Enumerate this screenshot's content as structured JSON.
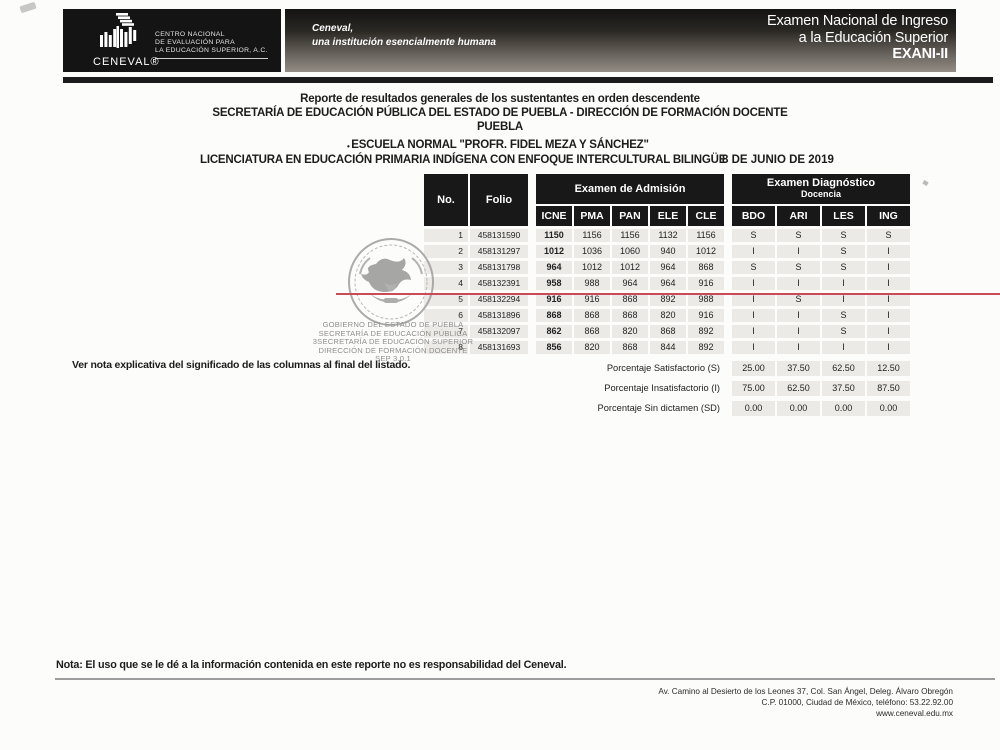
{
  "header": {
    "logo": {
      "brand": "CENEVAL®",
      "org_lines": [
        "CENTRO NACIONAL",
        "DE EVALUACIÓN PARA",
        "LA EDUCACIÓN SUPERIOR, A.C."
      ]
    },
    "slogan_line1": "Ceneval,",
    "slogan_line2": "una institución esencialmente humana",
    "exam_title_lines": [
      "Examen Nacional de Ingreso",
      "a la Educación Superior",
      "EXANI-II"
    ]
  },
  "titles": {
    "report": "Reporte de resultados generales de los sustentantes en orden descendente",
    "secretary": "SECRETARÍA DE EDUCACIÓN PÚBLICA DEL ESTADO DE PUEBLA - DIRECCIÓN DE FORMACIÓN DOCENTE",
    "state": "PUEBLA",
    "school_bullet": "•",
    "school": "ESCUELA NORMAL \"PROFR. FIDEL MEZA Y SÁNCHEZ\"",
    "program": "LICENCIATURA EN EDUCACIÓN PRIMARIA INDÍGENA CON ENFOQUE INTERCULTURAL BILINGÜE",
    "date": "8 DE JUNIO DE 2019"
  },
  "table": {
    "col_no": "No.",
    "col_folio": "Folio",
    "group_admission": "Examen de Admisión",
    "group_diagnostic_line1": "Examen Diagnóstico",
    "group_diagnostic_line2": "Docencia",
    "admission_cols": [
      "ICNE",
      "PMA",
      "PAN",
      "ELE",
      "CLE"
    ],
    "diagnostic_cols": [
      "BDO",
      "ARI",
      "LES",
      "ING"
    ],
    "rows": [
      {
        "no": "1",
        "folio": "458131590",
        "adm": [
          "1150",
          "1156",
          "1156",
          "1132",
          "1156"
        ],
        "diag": [
          "S",
          "S",
          "S",
          "S"
        ]
      },
      {
        "no": "2",
        "folio": "458131297",
        "adm": [
          "1012",
          "1036",
          "1060",
          "940",
          "1012"
        ],
        "diag": [
          "I",
          "I",
          "S",
          "I"
        ]
      },
      {
        "no": "3",
        "folio": "458131798",
        "adm": [
          "964",
          "1012",
          "1012",
          "964",
          "868"
        ],
        "diag": [
          "S",
          "S",
          "S",
          "I"
        ]
      },
      {
        "no": "4",
        "folio": "458132391",
        "adm": [
          "958",
          "988",
          "964",
          "964",
          "916"
        ],
        "diag": [
          "I",
          "I",
          "I",
          "I"
        ]
      },
      {
        "no": "5",
        "folio": "458132294",
        "adm": [
          "916",
          "916",
          "868",
          "892",
          "988"
        ],
        "diag": [
          "I",
          "S",
          "I",
          "I"
        ]
      },
      {
        "no": "6",
        "folio": "458131896",
        "adm": [
          "868",
          "868",
          "868",
          "820",
          "916"
        ],
        "diag": [
          "I",
          "I",
          "S",
          "I"
        ]
      },
      {
        "no": "7",
        "folio": "458132097",
        "adm": [
          "862",
          "868",
          "820",
          "868",
          "892"
        ],
        "diag": [
          "I",
          "I",
          "S",
          "I"
        ]
      },
      {
        "no": "8",
        "folio": "458131693",
        "adm": [
          "856",
          "820",
          "868",
          "844",
          "892"
        ],
        "diag": [
          "I",
          "I",
          "I",
          "I"
        ]
      }
    ],
    "summary": [
      {
        "label": "Porcentaje Satisfactorio (S)",
        "values": [
          "25.00",
          "37.50",
          "62.50",
          "12.50"
        ]
      },
      {
        "label": "Porcentaje Insatisfactorio (I)",
        "values": [
          "75.00",
          "62.50",
          "37.50",
          "87.50"
        ]
      },
      {
        "label": "Porcentaje Sin dictamen (SD)",
        "values": [
          "0.00",
          "0.00",
          "0.00",
          "0.00"
        ]
      }
    ]
  },
  "stamp": {
    "lines": [
      "GOBIERNO DEL ESTADO DE PUEBLA",
      "SECRETARÍA DE EDUCACIÓN PÚBLICA",
      "3SECRETARÍA DE EDUCACIÓN SUPERIOR",
      "DIRECCIÓN DE FORMACIÓN DOCENTE",
      "SEP 3.0.1"
    ]
  },
  "notes": {
    "see_note": "Ver nota explicativa del significado de las columnas al final del listado.",
    "bottom_note": "Nota: El uso que se le dé a la información contenida en este reporte no es responsabilidad del Ceneval."
  },
  "footer": {
    "address_line1": "Av. Camino al Desierto de los Leones 37, Col. San Ángel, Deleg. Álvaro Obregón",
    "address_line2": "C.P. 01000, Ciudad de México, teléfono: 53.22.92.00",
    "website": "www.ceneval.edu.mx"
  },
  "colors": {
    "header_bar": "#141414",
    "cell_gray": "#eceae7",
    "red_line": "#cb4a57"
  }
}
